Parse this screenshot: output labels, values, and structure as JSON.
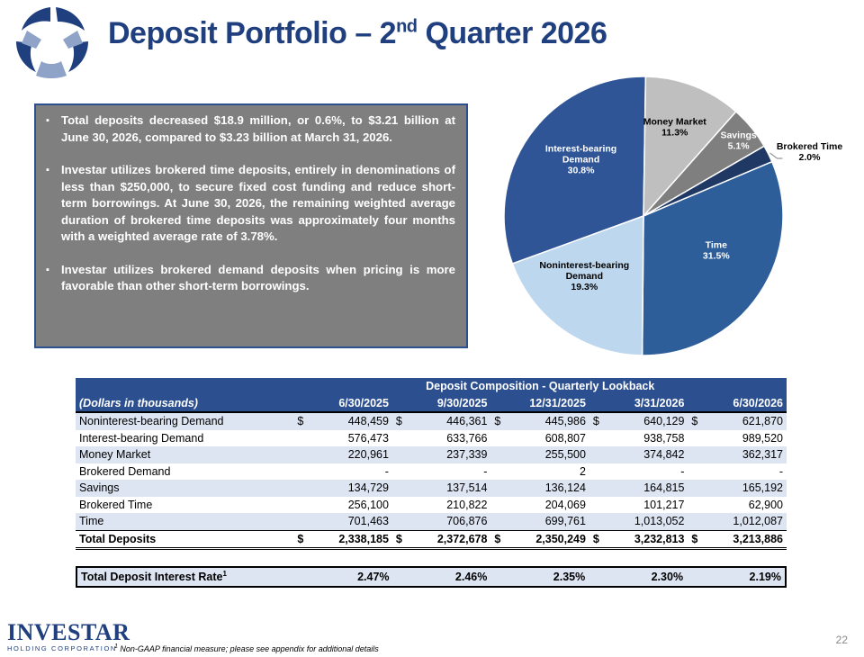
{
  "title": {
    "main": "Deposit Portfolio – 2",
    "sup": "nd",
    "rest": " Quarter 2026"
  },
  "bullets": [
    "Total deposits decreased $18.9 million, or 0.6%, to $3.21 billion at June 30, 2026, compared to $3.23 billion at March 31, 2026.",
    "Investar utilizes brokered time deposits, entirely in denominations of less than $250,000, to secure fixed cost funding and reduce short-term borrowings. At June 30, 2026, the remaining weighted average duration of brokered time deposits was approximately four months with a weighted average rate of 3.78%.",
    "Investar utilizes brokered demand deposits when pricing is more favorable than other short-term borrowings."
  ],
  "colors": {
    "brand_blue": "#1f3f7f",
    "header_blue": "#2c4f8f",
    "row_stripe": "#dde4f2",
    "panel_gray": "#7f7f7f"
  },
  "chart_data": {
    "type": "pie",
    "slices": [
      {
        "label": "Interest-bearing Demand",
        "value": 30.8,
        "pct_label": "30.8%",
        "color": "#2f5597"
      },
      {
        "label": "Money Market",
        "value": 11.3,
        "pct_label": "11.3%",
        "color": "#bfbfbf"
      },
      {
        "label": "Savings",
        "value": 5.1,
        "pct_label": "5.1%",
        "color": "#7f7f7f"
      },
      {
        "label": "Brokered Time",
        "value": 2.0,
        "pct_label": "2.0%",
        "color": "#1f3864"
      },
      {
        "label": "Time",
        "value": 31.5,
        "pct_label": "31.5%",
        "color": "#2e5e9a"
      },
      {
        "label": "Noninterest-bearing Demand",
        "value": 19.3,
        "pct_label": "19.3%",
        "color": "#bdd7ee"
      }
    ]
  },
  "table": {
    "group_header": "Deposit Composition - Quarterly Lookback",
    "units_label": "(Dollars in thousands)",
    "columns": [
      "6/30/2025",
      "9/30/2025",
      "12/31/2025",
      "3/31/2026",
      "6/30/2026"
    ],
    "currency_symbol": "$",
    "rows": [
      {
        "label": "Noninterest-bearing Demand",
        "dollar": true,
        "values": [
          "448,459",
          "446,361",
          "445,986",
          "640,129",
          "621,870"
        ]
      },
      {
        "label": "Interest-bearing Demand",
        "dollar": false,
        "values": [
          "576,473",
          "633,766",
          "608,807",
          "938,758",
          "989,520"
        ]
      },
      {
        "label": "Money Market",
        "dollar": false,
        "values": [
          "220,961",
          "237,339",
          "255,500",
          "374,842",
          "362,317"
        ]
      },
      {
        "label": "Brokered Demand",
        "dollar": false,
        "values": [
          "-",
          "-",
          "2",
          "-",
          "-"
        ]
      },
      {
        "label": "Savings",
        "dollar": false,
        "values": [
          "134,729",
          "137,514",
          "136,124",
          "164,815",
          "165,192"
        ]
      },
      {
        "label": "Brokered Time",
        "dollar": false,
        "values": [
          "256,100",
          "210,822",
          "204,069",
          "101,217",
          "62,900"
        ]
      },
      {
        "label": "Time",
        "dollar": false,
        "values": [
          "701,463",
          "706,876",
          "699,761",
          "1,013,052",
          "1,012,087"
        ]
      }
    ],
    "total": {
      "label": "Total Deposits",
      "values": [
        "2,338,185",
        "2,372,678",
        "2,350,249",
        "3,232,813",
        "3,213,886"
      ]
    },
    "rate": {
      "label": "Total Deposit Interest Rate",
      "sup": "1",
      "values": [
        "2.47%",
        "2.46%",
        "2.35%",
        "2.30%",
        "2.19%"
      ]
    }
  },
  "footer": {
    "logo_name": "INVESTAR",
    "logo_sub": "HOLDING CORPORATION",
    "footnote_sup": "1",
    "footnote": " Non-GAAP financial measure; please see appendix for additional details",
    "page_number": "22"
  }
}
